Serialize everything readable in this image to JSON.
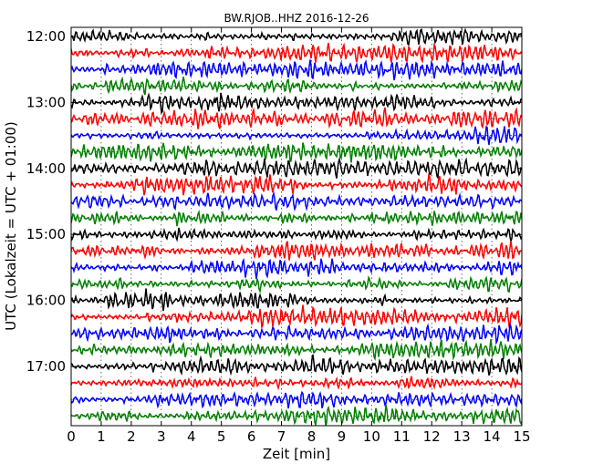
{
  "chart_data": {
    "type": "line",
    "title": "BW.RJOB..HHZ 2016-12-26",
    "xlabel": "Zeit  [min]",
    "ylabel": "UTC (Lokalzeit = UTC + 01:00)",
    "xlim": [
      0,
      15
    ],
    "x_ticks": [
      "0",
      "1",
      "2",
      "3",
      "4",
      "5",
      "6",
      "7",
      "8",
      "9",
      "10",
      "11",
      "12",
      "13",
      "14",
      "15"
    ],
    "y_ticks": [
      "12:00",
      "13:00",
      "14:00",
      "15:00",
      "16:00",
      "17:00"
    ],
    "grid": true,
    "trace_interval_min": 15,
    "trace_start": "12:00",
    "trace_count": 24,
    "trace_colors": [
      "#000000",
      "#ff0000",
      "#0000ff",
      "#008000"
    ]
  }
}
